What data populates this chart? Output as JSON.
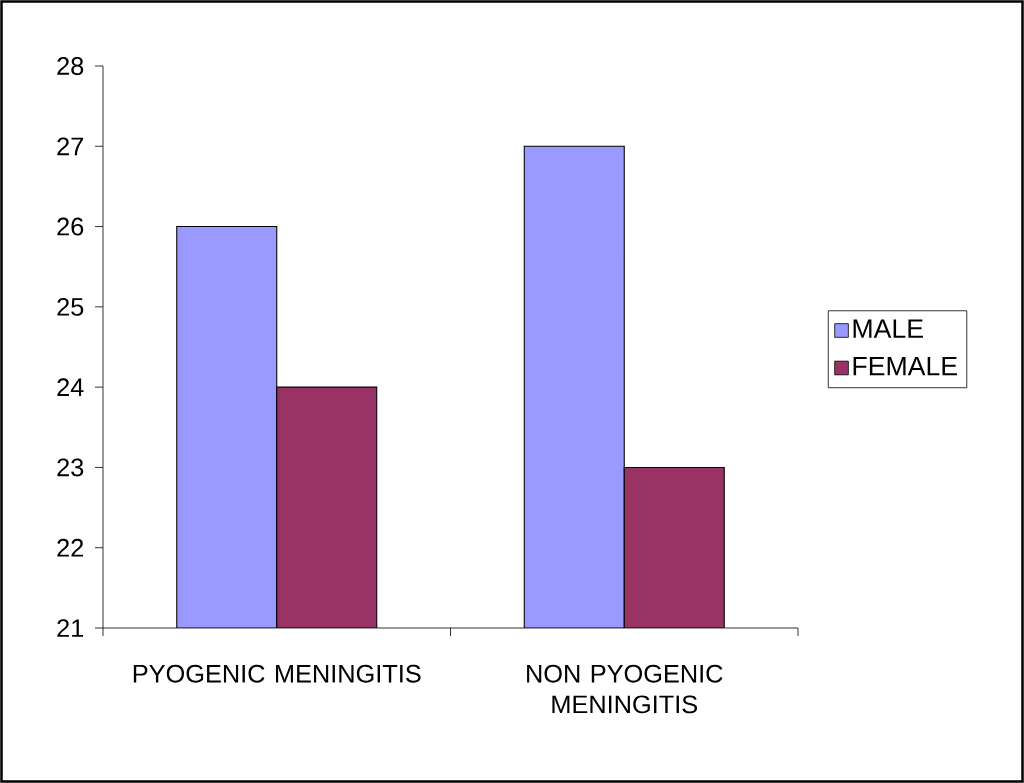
{
  "chart_data": {
    "type": "bar",
    "categories": [
      "PYOGENIC MENINGITIS",
      "NON PYOGENIC MENINGITIS"
    ],
    "series": [
      {
        "name": "MALE",
        "color": "#9999ff",
        "values": [
          26,
          27
        ]
      },
      {
        "name": "FEMALE",
        "color": "#993366",
        "values": [
          24,
          23
        ]
      }
    ],
    "ylim": [
      21,
      28
    ],
    "yticks": [
      21,
      22,
      23,
      24,
      25,
      26,
      27,
      28
    ],
    "grid": false,
    "legend": "right"
  }
}
